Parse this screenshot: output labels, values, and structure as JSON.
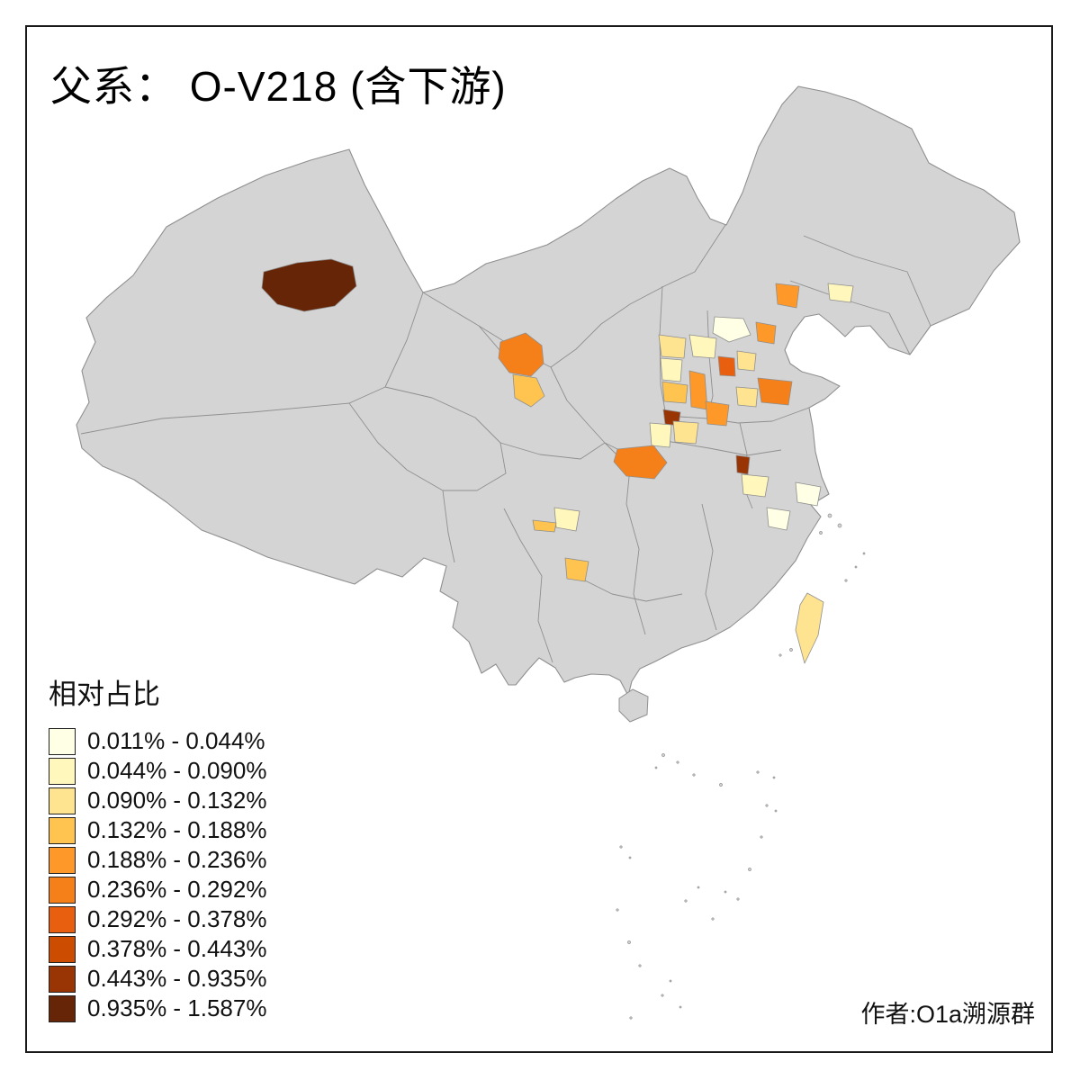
{
  "page": {
    "title": "父系： O-V218 (含下游)",
    "author_credit": "作者:O1a溯源群"
  },
  "legend": {
    "title": "相对占比",
    "items": [
      {
        "label": "0.011% - 0.044%",
        "color": "#FFFFE5"
      },
      {
        "label": "0.044% - 0.090%",
        "color": "#FFF7BC"
      },
      {
        "label": "0.090% - 0.132%",
        "color": "#FEE391"
      },
      {
        "label": "0.132% - 0.188%",
        "color": "#FEC44F"
      },
      {
        "label": "0.188% - 0.236%",
        "color": "#FE9929"
      },
      {
        "label": "0.236% - 0.292%",
        "color": "#F5801A"
      },
      {
        "label": "0.292% - 0.378%",
        "color": "#E8600F"
      },
      {
        "label": "0.378% - 0.443%",
        "color": "#CC4C02"
      },
      {
        "label": "0.443% - 0.935%",
        "color": "#993404"
      },
      {
        "label": "0.935% - 1.587%",
        "color": "#662506"
      }
    ]
  },
  "map": {
    "land_color": "#d4d4d4",
    "boundary_color": "#8f8f8f",
    "background_color": "#ffffff",
    "regions": [
      {
        "name": "xinjiang-ili",
        "bin": 9
      },
      {
        "name": "gansu-upper",
        "bin": 5
      },
      {
        "name": "gansu-lower",
        "bin": 3
      },
      {
        "name": "hebei-zhangjiakou",
        "bin": 0
      },
      {
        "name": "beijing-north",
        "bin": 1
      },
      {
        "name": "beijing-city",
        "bin": 6
      },
      {
        "name": "tianjin",
        "bin": 2
      },
      {
        "name": "tangshan",
        "bin": 4
      },
      {
        "name": "liaoning-chaoyang",
        "bin": 4
      },
      {
        "name": "liaoning-shenyang",
        "bin": 1
      },
      {
        "name": "shanxi-north",
        "bin": 2
      },
      {
        "name": "shanxi-center",
        "bin": 1
      },
      {
        "name": "shanxi-south",
        "bin": 3
      },
      {
        "name": "shanxi-strip",
        "bin": 4
      },
      {
        "name": "sanmenxia-dark",
        "bin": 8
      },
      {
        "name": "henan-north",
        "bin": 2
      },
      {
        "name": "henan-west",
        "bin": 1
      },
      {
        "name": "zhengzhou",
        "bin": 4
      },
      {
        "name": "shaanxi-south",
        "bin": 5
      },
      {
        "name": "shandong-jinan",
        "bin": 5
      },
      {
        "name": "shandong-west",
        "bin": 2
      },
      {
        "name": "anhui-dark",
        "bin": 8
      },
      {
        "name": "anhui-light",
        "bin": 1
      },
      {
        "name": "shanghai-pale",
        "bin": 0
      },
      {
        "name": "zhejiang-pale",
        "bin": 0
      },
      {
        "name": "chongqing-light",
        "bin": 1
      },
      {
        "name": "sichuan-sliver",
        "bin": 3
      },
      {
        "name": "guizhou",
        "bin": 3
      },
      {
        "name": "taiwan",
        "bin": 2
      }
    ]
  }
}
